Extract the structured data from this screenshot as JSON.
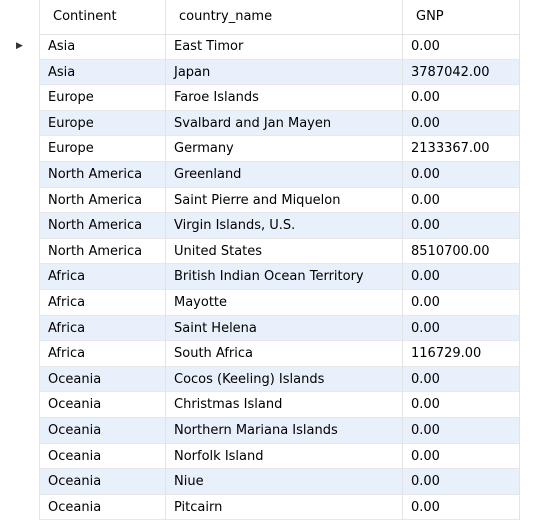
{
  "columns": [
    "Continent",
    "country_name",
    "GNP"
  ],
  "current_row_marker": "▶",
  "rows": [
    {
      "continent": "Asia",
      "country": "East Timor",
      "gnp": "0.00"
    },
    {
      "continent": "Asia",
      "country": "Japan",
      "gnp": "3787042.00"
    },
    {
      "continent": "Europe",
      "country": "Faroe Islands",
      "gnp": "0.00"
    },
    {
      "continent": "Europe",
      "country": "Svalbard and Jan Mayen",
      "gnp": "0.00"
    },
    {
      "continent": "Europe",
      "country": "Germany",
      "gnp": "2133367.00"
    },
    {
      "continent": "North America",
      "country": "Greenland",
      "gnp": "0.00"
    },
    {
      "continent": "North America",
      "country": "Saint Pierre and Miquelon",
      "gnp": "0.00"
    },
    {
      "continent": "North America",
      "country": "Virgin Islands, U.S.",
      "gnp": "0.00"
    },
    {
      "continent": "North America",
      "country": "United States",
      "gnp": "8510700.00"
    },
    {
      "continent": "Africa",
      "country": "British Indian Ocean Territory",
      "gnp": "0.00"
    },
    {
      "continent": "Africa",
      "country": "Mayotte",
      "gnp": "0.00"
    },
    {
      "continent": "Africa",
      "country": "Saint Helena",
      "gnp": "0.00"
    },
    {
      "continent": "Africa",
      "country": "South Africa",
      "gnp": "116729.00"
    },
    {
      "continent": "Oceania",
      "country": "Cocos (Keeling) Islands",
      "gnp": "0.00"
    },
    {
      "continent": "Oceania",
      "country": "Christmas Island",
      "gnp": "0.00"
    },
    {
      "continent": "Oceania",
      "country": "Northern Mariana Islands",
      "gnp": "0.00"
    },
    {
      "continent": "Oceania",
      "country": "Norfolk Island",
      "gnp": "0.00"
    },
    {
      "continent": "Oceania",
      "country": "Niue",
      "gnp": "0.00"
    },
    {
      "continent": "Oceania",
      "country": "Pitcairn",
      "gnp": "0.00"
    }
  ]
}
